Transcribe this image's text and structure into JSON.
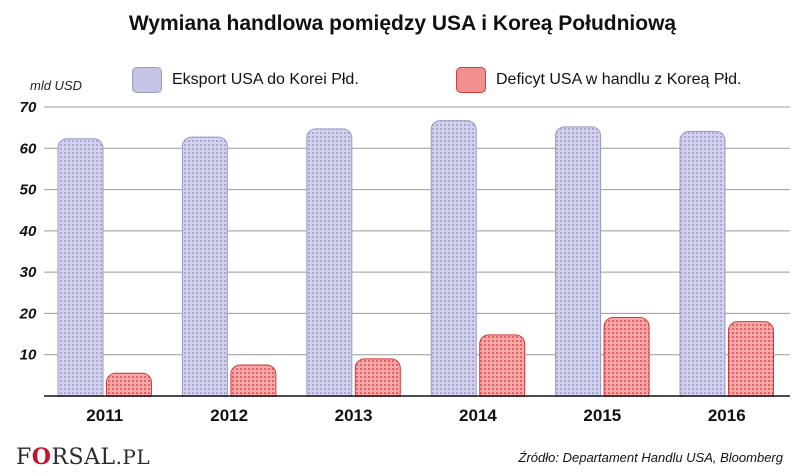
{
  "chart_data": {
    "type": "bar",
    "title": "Wymiana handlowa pomiędzy USA i Koreą Południową",
    "ylabel": "mld USD",
    "xlabel": "",
    "categories": [
      "2011",
      "2012",
      "2013",
      "2014",
      "2015",
      "2016"
    ],
    "series": [
      {
        "name": "Eksport USA do Korei Płd.",
        "values": [
          62.3,
          62.7,
          64.7,
          66.7,
          65.2,
          64.1
        ],
        "color": "#b4b4d8"
      },
      {
        "name": "Deficyt USA w handlu z Koreą Płd.",
        "values": [
          5.5,
          7.5,
          9.0,
          14.8,
          19.0,
          18.0
        ],
        "color": "#f08080"
      }
    ],
    "ylim": [
      0,
      70
    ],
    "yticks": [
      "10",
      "20",
      "30",
      "40",
      "50",
      "60",
      "70"
    ],
    "grid": true,
    "legend_position": "top"
  },
  "source": "Źródło:  Departament Handlu USA, Bloomberg",
  "logo": {
    "prefix": "F",
    "o": "O",
    "middle": "RSAL",
    "suffix": ".PL"
  },
  "colors": {
    "export_fill": "#b4b4d8",
    "export_border": "#9a9ac4",
    "deficit_fill": "#f08080",
    "deficit_border": "#d03a3a",
    "grid": "#9a9a9a",
    "axis": "#111111"
  }
}
